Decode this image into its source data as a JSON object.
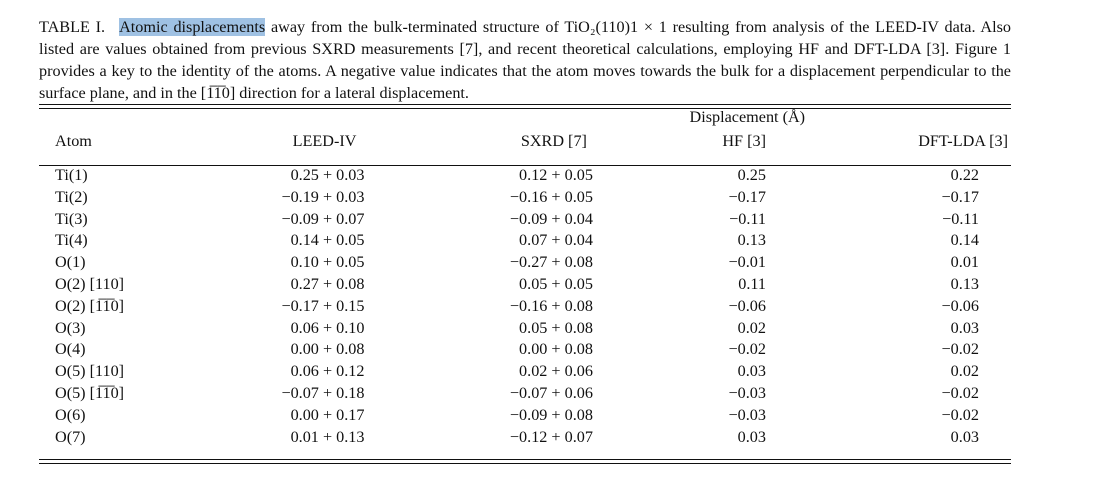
{
  "caption": {
    "label": "TABLE I.",
    "highlighted": "Atomic displacements",
    "text_before_formula": " away from the bulk-terminated structure of ",
    "formula_text": "TiO₂(110)1 × 1",
    "text_after_formula": " resulting from analysis of the LEED-IV data. Also listed are values obtained from previous SXRD measurements [7], and recent theoretical calculations, employing HF and DFT-LDA [3]. Figure 1 provides a key to the identity of the atoms. A negative value indicates that the atom moves towards the bulk for a displacement perpendicular to the surface plane, and in the [1̅1̅0] direction for a lateral displacement."
  },
  "table": {
    "span_header": "Displacement (Å)",
    "headers": [
      "Atom",
      "LEED-IV",
      "SXRD [7]",
      "HF [3]",
      "DFT-LDA [3]"
    ],
    "rows": [
      {
        "atom": "Ti(1)",
        "leed": "0.25 + 0.03",
        "sxrd": "0.12 + 0.05",
        "hf": "0.25",
        "dft": "0.22"
      },
      {
        "atom": "Ti(2)",
        "leed": "−0.19 + 0.03",
        "sxrd": "−0.16 + 0.05",
        "hf": "−0.17",
        "dft": "−0.17"
      },
      {
        "atom": "Ti(3)",
        "leed": "−0.09 + 0.07",
        "sxrd": "−0.09 + 0.04",
        "hf": "−0.11",
        "dft": "−0.11"
      },
      {
        "atom": "Ti(4)",
        "leed": "0.14 + 0.05",
        "sxrd": "0.07 + 0.04",
        "hf": "0.13",
        "dft": "0.14"
      },
      {
        "atom": "O(1)",
        "leed": "0.10 + 0.05",
        "sxrd": "−0.27 + 0.08",
        "hf": "−0.01",
        "dft": "0.01"
      },
      {
        "atom": "O(2) [110]",
        "leed": "0.27 + 0.08",
        "sxrd": "0.05 + 0.05",
        "hf": "0.11",
        "dft": "0.13"
      },
      {
        "atom": "O(2) [1̅1̅0]",
        "leed": "−0.17 + 0.15",
        "sxrd": "−0.16 + 0.08",
        "hf": "−0.06",
        "dft": "−0.06"
      },
      {
        "atom": "O(3)",
        "leed": "0.06 + 0.10",
        "sxrd": "0.05 + 0.08",
        "hf": "0.02",
        "dft": "0.03"
      },
      {
        "atom": "O(4)",
        "leed": "0.00 + 0.08",
        "sxrd": "0.00 + 0.08",
        "hf": "−0.02",
        "dft": "−0.02"
      },
      {
        "atom": "O(5) [110]",
        "leed": "0.06 + 0.12",
        "sxrd": "0.02 + 0.06",
        "hf": "0.03",
        "dft": "0.02"
      },
      {
        "atom": "O(5) [1̅1̅0]",
        "leed": "−0.07 + 0.18",
        "sxrd": "−0.07 + 0.06",
        "hf": "−0.03",
        "dft": "−0.02"
      },
      {
        "atom": "O(6)",
        "leed": "0.00 + 0.17",
        "sxrd": "−0.09 + 0.08",
        "hf": "−0.03",
        "dft": "−0.02"
      },
      {
        "atom": "O(7)",
        "leed": "0.01 + 0.13",
        "sxrd": "−0.12 + 0.07",
        "hf": "0.03",
        "dft": "0.03"
      }
    ]
  }
}
